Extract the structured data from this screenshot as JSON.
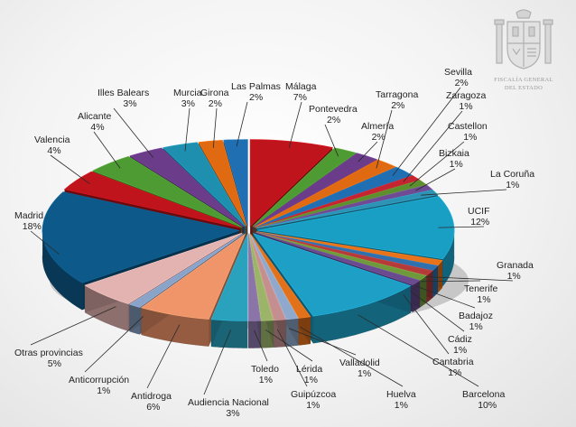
{
  "logo": {
    "line1": "FISCALÍA GENERAL",
    "line2": "DEL ESTADO"
  },
  "chart_data": {
    "type": "pie",
    "title": "",
    "slices": [
      {
        "label": "Málaga",
        "value": 7,
        "display": "7%",
        "color": "#c0141c"
      },
      {
        "label": "Pontevedra",
        "value": 2,
        "display": "2%",
        "color": "#4e9a33"
      },
      {
        "label": "Almería",
        "value": 2,
        "display": "2%",
        "color": "#6b3c8a"
      },
      {
        "label": "Tarragona",
        "value": 2,
        "display": "2%",
        "color": "#e06a12"
      },
      {
        "label": "Sevilla",
        "value": 2,
        "display": "2%",
        "color": "#1f6fb2"
      },
      {
        "label": "Zaragoza",
        "value": 1,
        "display": "1%",
        "color": "#c42530"
      },
      {
        "label": "Castellon",
        "value": 1,
        "display": "1%",
        "color": "#5d8f2e"
      },
      {
        "label": "Bizkaia",
        "value": 1,
        "display": "1%",
        "color": "#6e4b93"
      },
      {
        "label": "La Coruña",
        "value": 1,
        "display": "1%",
        "color": "#2c93b5"
      },
      {
        "label": "UCIF",
        "value": 12,
        "display": "12%",
        "color": "#1a9fc4"
      },
      {
        "label": "Granada",
        "value": 1,
        "display": "1%",
        "color": "#e8731a"
      },
      {
        "label": "Tenerife",
        "value": 1,
        "display": "1%",
        "color": "#2f70ad"
      },
      {
        "label": "Badajoz",
        "value": 1,
        "display": "1%",
        "color": "#b53a3a"
      },
      {
        "label": "Cádiz",
        "value": 1,
        "display": "1%",
        "color": "#6f9a3c"
      },
      {
        "label": "Cantabria",
        "value": 1,
        "display": "1%",
        "color": "#6a4b90"
      },
      {
        "label": "Barcelona",
        "value": 10,
        "display": "10%",
        "color": "#1e9fc6"
      },
      {
        "label": "Huelva",
        "value": 1,
        "display": "1%",
        "color": "#e2711b"
      },
      {
        "label": "Valladolid",
        "value": 1,
        "display": "1%",
        "color": "#8fa9cc"
      },
      {
        "label": "Guipúzcoa",
        "value": 1,
        "display": "1%",
        "color": "#c48f8e"
      },
      {
        "label": "Lérida",
        "value": 1,
        "display": "1%",
        "color": "#9bb46a"
      },
      {
        "label": "Toledo",
        "value": 1,
        "display": "1%",
        "color": "#8a74a8"
      },
      {
        "label": "Audiencia Nacional",
        "value": 3,
        "display": "3%",
        "color": "#2aa2bd"
      },
      {
        "label": "Antidroga",
        "value": 6,
        "display": "6%",
        "color": "#f0956a"
      },
      {
        "label": "Anticorrupción",
        "value": 1,
        "display": "1%",
        "color": "#8aa3c8"
      },
      {
        "label": "Otras provincias",
        "value": 5,
        "display": "5%",
        "color": "#e3b3b1"
      },
      {
        "label": "Madrid",
        "value": 18,
        "display": "18%",
        "color": "#0d5a8a"
      },
      {
        "label": "Valencia",
        "value": 4,
        "display": "4%",
        "color": "#c0141c"
      },
      {
        "label": "Alicante",
        "value": 4,
        "display": "4%",
        "color": "#4e9a33"
      },
      {
        "label": "Illes Balears",
        "value": 3,
        "display": "3%",
        "color": "#6b3c8a"
      },
      {
        "label": "Murcia",
        "value": 3,
        "display": "3%",
        "color": "#1f8fb0"
      },
      {
        "label": "Girona",
        "value": 2,
        "display": "2%",
        "color": "#e06a12"
      },
      {
        "label": "Las Palmas",
        "value": 2,
        "display": "2%",
        "color": "#1f6fb2"
      }
    ],
    "legend": "none",
    "style": "3d-exploded"
  }
}
